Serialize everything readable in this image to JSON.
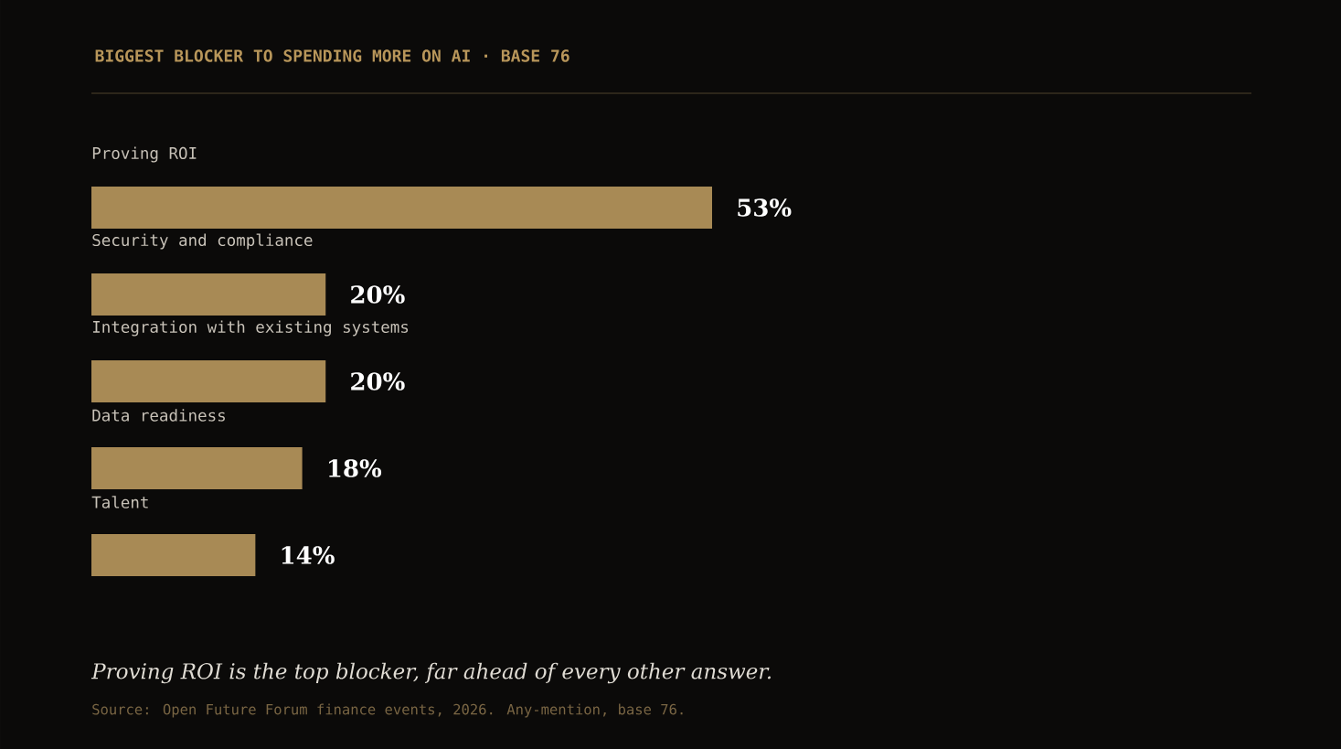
{
  "chart_data": {
    "type": "bar",
    "orientation": "horizontal",
    "title": "BIGGEST BLOCKER TO SPENDING MORE ON AI  ·  BASE 76",
    "categories": [
      "Proving ROI",
      "Security and compliance",
      "Integration with existing systems",
      "Data readiness",
      "Talent"
    ],
    "values": [
      53,
      20,
      20,
      18,
      14
    ],
    "value_labels": [
      "53%",
      "20%",
      "20%",
      "18%",
      "14%"
    ],
    "color": "#a88a55",
    "annotations": [
      "Proving ROI is the top blocker, far ahead of every other answer.",
      "Source: Open Future Forum finance events, 2026. Any-mention, base 76."
    ]
  }
}
